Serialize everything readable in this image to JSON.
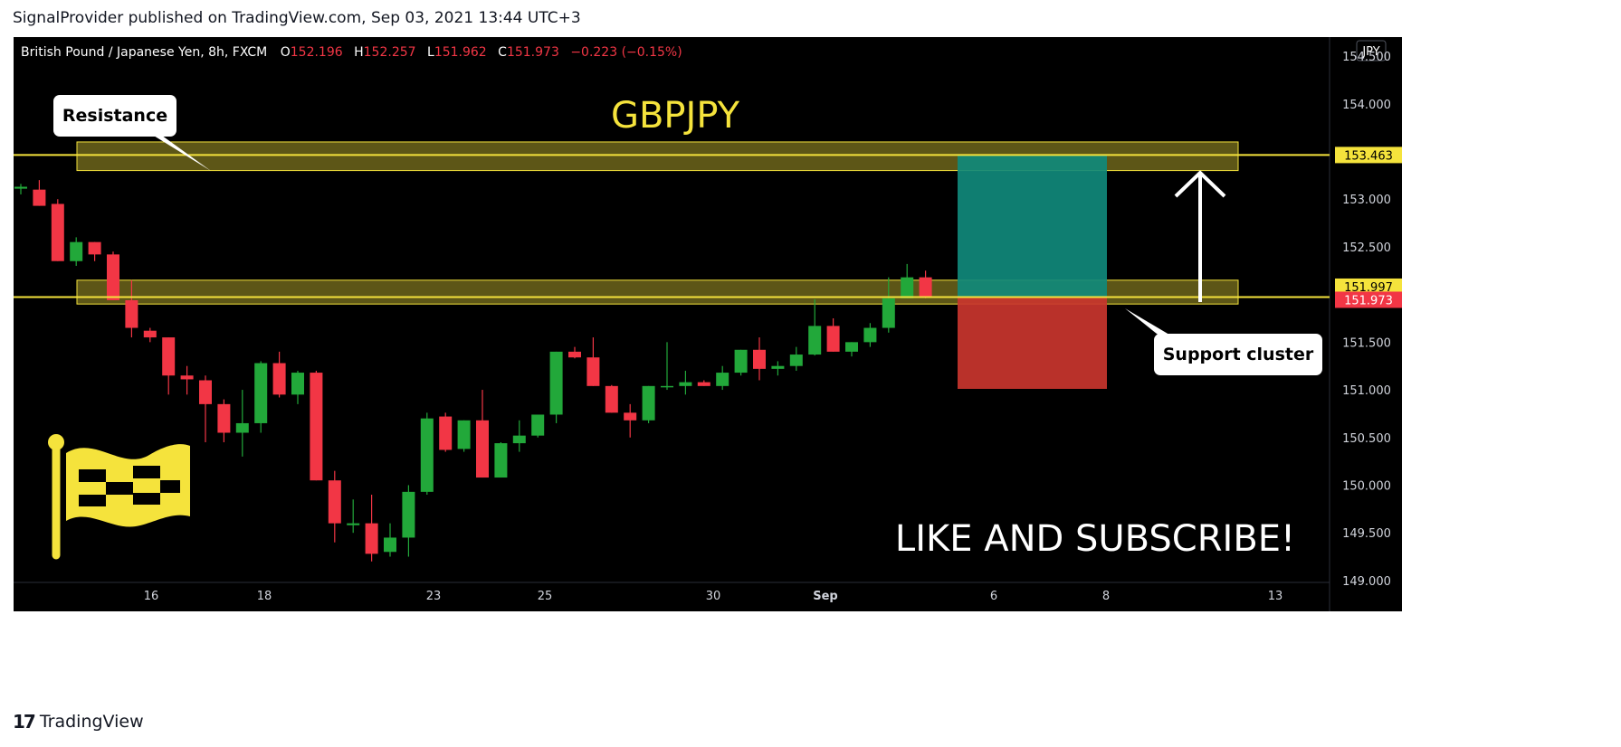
{
  "header": {
    "published_line": "SignalProvider published on TradingView.com, Sep 03, 2021 13:44 UTC+3"
  },
  "footer": {
    "logo_text": "TradingView"
  },
  "chart_data": {
    "type": "candlestick",
    "symbol_line": "British Pound / Japanese Yen, 8h, FXCM",
    "ohlc_summary": {
      "O_label": "O",
      "O": "152.196",
      "H_label": "H",
      "H": "152.257",
      "L_label": "L",
      "L": "151.962",
      "C_label": "C",
      "C": "151.973",
      "change": "−0.223 (−0.15%)"
    },
    "currency_badge": "JPY",
    "title": "GBPJPY",
    "ylim": [
      148.98,
      154.7
    ],
    "y_ticks": [
      "154.500",
      "154.000",
      "153.500",
      "153.000",
      "152.500",
      "152.000",
      "151.500",
      "151.000",
      "150.500",
      "150.000",
      "149.500",
      "149.000"
    ],
    "x_ticks": [
      "16",
      "18",
      "23",
      "25",
      "30",
      "Sep",
      "6",
      "8",
      "13"
    ],
    "price_labels": [
      {
        "value": 153.463,
        "text": "153.463",
        "color": "#f5e33c",
        "text_color": "#000000"
      },
      {
        "value": 151.997,
        "text": "151.997",
        "color": "#f5e33c",
        "text_color": "#000000"
      },
      {
        "value": 151.973,
        "text": "151.973",
        "color": "#f23645",
        "text_color": "#ffffff"
      }
    ],
    "zones": [
      {
        "name": "resistance",
        "y_low": 153.3,
        "y_high": 153.6
      },
      {
        "name": "support",
        "y_low": 151.9,
        "y_high": 152.15
      }
    ],
    "position": {
      "entry": 151.973,
      "target": 153.463,
      "stop": 151.01
    },
    "annotations": {
      "resistance_label": "Resistance",
      "support_label": "Support cluster",
      "cta": "LIKE AND SUBSCRIBE!"
    },
    "colors": {
      "up": "#089981",
      "up_fill": "#22a83a",
      "down": "#f23645",
      "zone": "#f5e33c",
      "title": "#f5e33c",
      "target": "#10897b",
      "stop": "#c9352e"
    },
    "candles": [
      [
        153.11,
        153.16,
        153.05,
        153.13
      ],
      [
        153.1,
        153.2,
        152.93,
        152.93
      ],
      [
        152.95,
        153.0,
        152.35,
        152.35
      ],
      [
        152.35,
        152.6,
        152.3,
        152.55
      ],
      [
        152.55,
        152.55,
        152.35,
        152.42
      ],
      [
        152.42,
        152.45,
        151.94,
        151.94
      ],
      [
        151.94,
        152.15,
        151.55,
        151.65
      ],
      [
        151.62,
        151.65,
        151.5,
        151.55
      ],
      [
        151.55,
        151.55,
        150.95,
        151.15
      ],
      [
        151.15,
        151.25,
        150.95,
        151.11
      ],
      [
        151.1,
        151.15,
        150.45,
        150.85
      ],
      [
        150.85,
        150.9,
        150.45,
        150.55
      ],
      [
        150.55,
        151.0,
        150.3,
        150.65
      ],
      [
        150.65,
        151.3,
        150.55,
        151.28
      ],
      [
        151.28,
        151.4,
        150.92,
        150.95
      ],
      [
        150.95,
        151.2,
        150.85,
        151.18
      ],
      [
        151.18,
        151.2,
        150.05,
        150.05
      ],
      [
        150.05,
        150.15,
        149.4,
        149.6
      ],
      [
        149.58,
        149.85,
        149.5,
        149.6
      ],
      [
        149.6,
        149.9,
        149.2,
        149.28
      ],
      [
        149.3,
        149.6,
        149.25,
        149.45
      ],
      [
        149.45,
        150.0,
        149.25,
        149.93
      ],
      [
        149.93,
        150.76,
        149.9,
        150.7
      ],
      [
        150.72,
        150.76,
        150.35,
        150.37
      ],
      [
        150.38,
        150.68,
        150.35,
        150.68
      ],
      [
        150.68,
        151.0,
        150.08,
        150.08
      ],
      [
        150.08,
        150.45,
        150.08,
        150.44
      ],
      [
        150.44,
        150.68,
        150.35,
        150.52
      ],
      [
        150.52,
        150.7,
        150.5,
        150.74
      ],
      [
        150.74,
        151.4,
        150.65,
        151.4
      ],
      [
        151.4,
        151.45,
        151.33,
        151.34
      ],
      [
        151.34,
        151.55,
        151.04,
        151.04
      ],
      [
        151.04,
        151.05,
        150.76,
        150.76
      ],
      [
        150.76,
        150.85,
        150.5,
        150.68
      ],
      [
        150.68,
        151.04,
        150.65,
        151.04
      ],
      [
        151.04,
        151.5,
        151.0,
        151.04
      ],
      [
        151.04,
        151.2,
        150.95,
        151.08
      ],
      [
        151.08,
        151.1,
        151.04,
        151.04
      ],
      [
        151.04,
        151.25,
        151.0,
        151.18
      ],
      [
        151.18,
        151.42,
        151.15,
        151.42
      ],
      [
        151.42,
        151.55,
        151.1,
        151.22
      ],
      [
        151.22,
        151.3,
        151.15,
        151.25
      ],
      [
        151.25,
        151.45,
        151.2,
        151.37
      ],
      [
        151.37,
        151.95,
        151.36,
        151.67
      ],
      [
        151.67,
        151.75,
        151.4,
        151.4
      ],
      [
        151.4,
        151.5,
        151.35,
        151.5
      ],
      [
        151.5,
        151.7,
        151.45,
        151.65
      ],
      [
        151.65,
        152.18,
        151.6,
        151.96
      ],
      [
        151.96,
        152.32,
        151.96,
        152.18
      ],
      [
        152.18,
        152.25,
        151.96,
        151.98
      ]
    ]
  }
}
